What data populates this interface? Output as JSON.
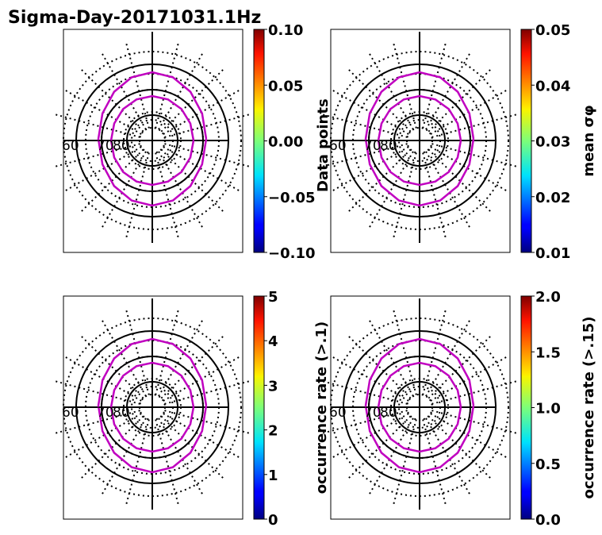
{
  "title": "Sigma-Day-20171031.1Hz",
  "colors": {
    "contour": "#c000c0",
    "grid": "#000000",
    "colormap": "jet"
  },
  "chart_data": [
    {
      "type": "heatmap",
      "projection": "polar",
      "lat_labels": [
        "60",
        "70",
        "80"
      ],
      "colorbar": {
        "label": "",
        "ticks": [
          "0.10",
          "0.05",
          "0.00",
          "−0.05",
          "−0.10"
        ],
        "range": [
          -0.1,
          0.1
        ]
      }
    },
    {
      "type": "heatmap",
      "projection": "polar",
      "lat_labels": [
        "60",
        "70",
        "80"
      ],
      "ylabel": "Data points",
      "colorbar": {
        "label": "mean σφ",
        "ticks": [
          "0.05",
          "0.04",
          "0.03",
          "0.02",
          "0.01"
        ],
        "range": [
          0.01,
          0.05
        ]
      }
    },
    {
      "type": "heatmap",
      "projection": "polar",
      "lat_labels": [
        "60",
        "70",
        "80"
      ],
      "colorbar": {
        "label": "occurrence rate (>.1)",
        "ticks": [
          "5",
          "4",
          "3",
          "2",
          "1",
          "0"
        ],
        "range": [
          0,
          5
        ]
      }
    },
    {
      "type": "heatmap",
      "projection": "polar",
      "lat_labels": [
        "60",
        "70",
        "80"
      ],
      "colorbar": {
        "label": "occurrence rate (>.15)",
        "ticks": [
          "2.0",
          "1.5",
          "1.0",
          "0.5",
          "0.0"
        ],
        "range": [
          0,
          2
        ]
      }
    }
  ]
}
